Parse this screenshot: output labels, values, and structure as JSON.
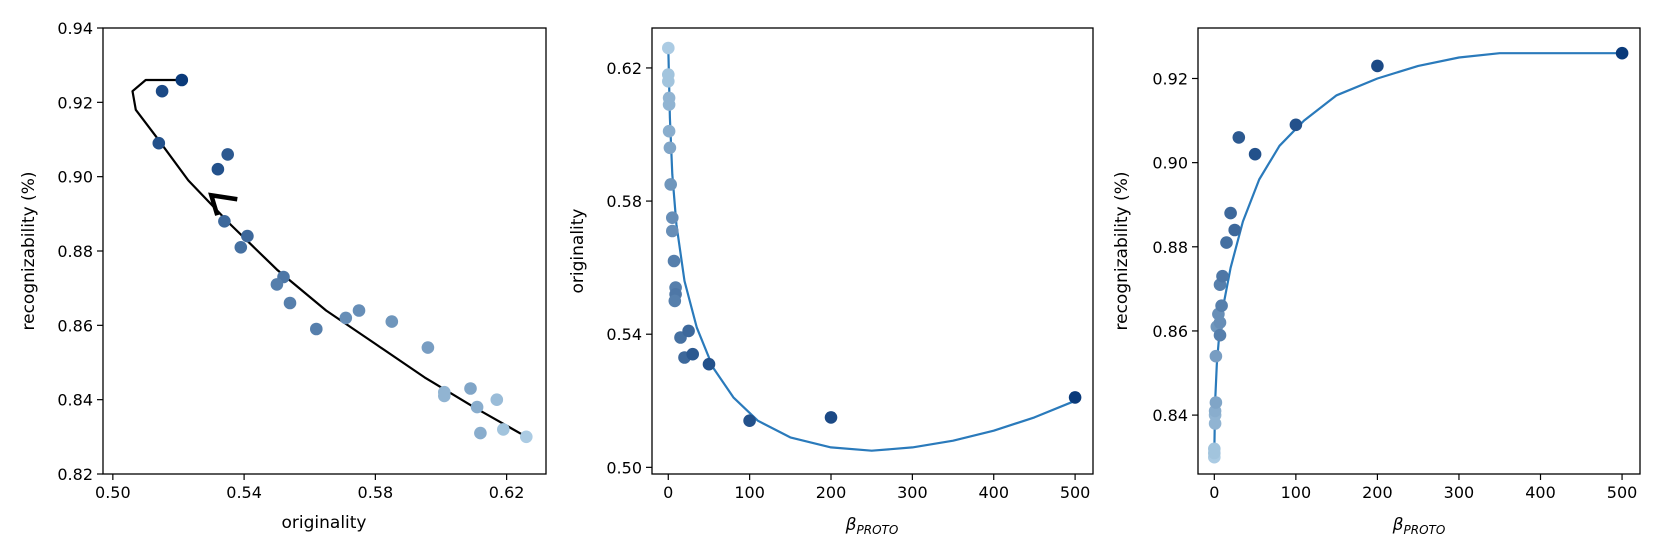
{
  "chart_data": [
    {
      "type": "scatter",
      "xlabel": "originality",
      "ylabel": "recognizability (%)",
      "xlim": [
        0.497,
        0.632
      ],
      "ylim": [
        0.82,
        0.94
      ],
      "xticks": [
        "0.50",
        "0.54",
        "0.58",
        "0.62"
      ],
      "yticks": [
        "0.82",
        "0.84",
        "0.86",
        "0.88",
        "0.90",
        "0.92",
        "0.94"
      ],
      "points": [
        {
          "x": 0.626,
          "y": 0.83,
          "shade": 0.05
        },
        {
          "x": 0.619,
          "y": 0.832,
          "shade": 0.1
        },
        {
          "x": 0.617,
          "y": 0.84,
          "shade": 0.15
        },
        {
          "x": 0.612,
          "y": 0.831,
          "shade": 0.25
        },
        {
          "x": 0.611,
          "y": 0.838,
          "shade": 0.25
        },
        {
          "x": 0.609,
          "y": 0.843,
          "shade": 0.3
        },
        {
          "x": 0.601,
          "y": 0.841,
          "shade": 0.2
        },
        {
          "x": 0.601,
          "y": 0.842,
          "shade": 0.2
        },
        {
          "x": 0.596,
          "y": 0.854,
          "shade": 0.35
        },
        {
          "x": 0.585,
          "y": 0.861,
          "shade": 0.4
        },
        {
          "x": 0.575,
          "y": 0.864,
          "shade": 0.45
        },
        {
          "x": 0.571,
          "y": 0.862,
          "shade": 0.45
        },
        {
          "x": 0.562,
          "y": 0.859,
          "shade": 0.55
        },
        {
          "x": 0.554,
          "y": 0.866,
          "shade": 0.55
        },
        {
          "x": 0.552,
          "y": 0.873,
          "shade": 0.6
        },
        {
          "x": 0.55,
          "y": 0.871,
          "shade": 0.55
        },
        {
          "x": 0.541,
          "y": 0.884,
          "shade": 0.7
        },
        {
          "x": 0.539,
          "y": 0.881,
          "shade": 0.65
        },
        {
          "x": 0.534,
          "y": 0.888,
          "shade": 0.7
        },
        {
          "x": 0.535,
          "y": 0.906,
          "shade": 0.8
        },
        {
          "x": 0.532,
          "y": 0.902,
          "shade": 0.85
        },
        {
          "x": 0.514,
          "y": 0.909,
          "shade": 0.85
        },
        {
          "x": 0.515,
          "y": 0.923,
          "shade": 0.9
        },
        {
          "x": 0.521,
          "y": 0.926,
          "shade": 1.0
        }
      ],
      "trend": [
        [
          0.626,
          0.83
        ],
        [
          0.61,
          0.838
        ],
        [
          0.595,
          0.846
        ],
        [
          0.58,
          0.855
        ],
        [
          0.565,
          0.864
        ],
        [
          0.55,
          0.875
        ],
        [
          0.536,
          0.887
        ],
        [
          0.523,
          0.899
        ],
        [
          0.513,
          0.911
        ],
        [
          0.507,
          0.918
        ],
        [
          0.506,
          0.923
        ],
        [
          0.51,
          0.926
        ],
        [
          0.52,
          0.926
        ]
      ],
      "arrow_at": [
        0.53,
        0.895
      ]
    },
    {
      "type": "scatter",
      "xlabel": "β",
      "xlabel_sub": "PROTO",
      "ylabel": "originality",
      "xlim": [
        -20,
        522
      ],
      "ylim": [
        0.498,
        0.632
      ],
      "xticks": [
        "0",
        "100",
        "200",
        "300",
        "400",
        "500"
      ],
      "yticks": [
        "0.50",
        "0.54",
        "0.58",
        "0.62"
      ],
      "points": [
        {
          "x": 0,
          "y": 0.626,
          "shade": 0.05
        },
        {
          "x": 0,
          "y": 0.618,
          "shade": 0.1
        },
        {
          "x": 0,
          "y": 0.616,
          "shade": 0.1
        },
        {
          "x": 1,
          "y": 0.611,
          "shade": 0.2
        },
        {
          "x": 1,
          "y": 0.609,
          "shade": 0.2
        },
        {
          "x": 1,
          "y": 0.601,
          "shade": 0.25
        },
        {
          "x": 2,
          "y": 0.596,
          "shade": 0.3
        },
        {
          "x": 3,
          "y": 0.585,
          "shade": 0.4
        },
        {
          "x": 5,
          "y": 0.575,
          "shade": 0.45
        },
        {
          "x": 5,
          "y": 0.571,
          "shade": 0.45
        },
        {
          "x": 7,
          "y": 0.562,
          "shade": 0.55
        },
        {
          "x": 9,
          "y": 0.554,
          "shade": 0.55
        },
        {
          "x": 9,
          "y": 0.552,
          "shade": 0.6
        },
        {
          "x": 8,
          "y": 0.55,
          "shade": 0.55
        },
        {
          "x": 15,
          "y": 0.539,
          "shade": 0.65
        },
        {
          "x": 25,
          "y": 0.541,
          "shade": 0.7
        },
        {
          "x": 20,
          "y": 0.533,
          "shade": 0.7
        },
        {
          "x": 30,
          "y": 0.534,
          "shade": 0.8
        },
        {
          "x": 50,
          "y": 0.531,
          "shade": 0.85
        },
        {
          "x": 100,
          "y": 0.514,
          "shade": 0.85
        },
        {
          "x": 200,
          "y": 0.515,
          "shade": 0.9
        },
        {
          "x": 500,
          "y": 0.521,
          "shade": 1.0
        }
      ],
      "trend": [
        [
          0,
          0.626
        ],
        [
          2,
          0.605
        ],
        [
          5,
          0.588
        ],
        [
          10,
          0.573
        ],
        [
          20,
          0.556
        ],
        [
          35,
          0.542
        ],
        [
          55,
          0.53
        ],
        [
          80,
          0.521
        ],
        [
          110,
          0.514
        ],
        [
          150,
          0.509
        ],
        [
          200,
          0.506
        ],
        [
          250,
          0.505
        ],
        [
          300,
          0.506
        ],
        [
          350,
          0.508
        ],
        [
          400,
          0.511
        ],
        [
          450,
          0.515
        ],
        [
          500,
          0.52
        ]
      ]
    },
    {
      "type": "scatter",
      "xlabel": "β",
      "xlabel_sub": "PROTO",
      "ylabel": "recognizability (%)",
      "xlim": [
        -20,
        522
      ],
      "ylim": [
        0.826,
        0.932
      ],
      "xticks": [
        "0",
        "100",
        "200",
        "300",
        "400",
        "500"
      ],
      "yticks": [
        "0.84",
        "0.86",
        "0.88",
        "0.90",
        "0.92"
      ],
      "points": [
        {
          "x": 0,
          "y": 0.83,
          "shade": 0.05
        },
        {
          "x": 0,
          "y": 0.831,
          "shade": 0.1
        },
        {
          "x": 0,
          "y": 0.832,
          "shade": 0.1
        },
        {
          "x": 1,
          "y": 0.838,
          "shade": 0.2
        },
        {
          "x": 1,
          "y": 0.84,
          "shade": 0.2
        },
        {
          "x": 1,
          "y": 0.841,
          "shade": 0.25
        },
        {
          "x": 2,
          "y": 0.843,
          "shade": 0.3
        },
        {
          "x": 2,
          "y": 0.854,
          "shade": 0.35
        },
        {
          "x": 3,
          "y": 0.861,
          "shade": 0.4
        },
        {
          "x": 5,
          "y": 0.864,
          "shade": 0.45
        },
        {
          "x": 7,
          "y": 0.862,
          "shade": 0.45
        },
        {
          "x": 7,
          "y": 0.859,
          "shade": 0.55
        },
        {
          "x": 9,
          "y": 0.866,
          "shade": 0.55
        },
        {
          "x": 7,
          "y": 0.871,
          "shade": 0.55
        },
        {
          "x": 10,
          "y": 0.873,
          "shade": 0.6
        },
        {
          "x": 15,
          "y": 0.881,
          "shade": 0.65
        },
        {
          "x": 25,
          "y": 0.884,
          "shade": 0.7
        },
        {
          "x": 20,
          "y": 0.888,
          "shade": 0.7
        },
        {
          "x": 30,
          "y": 0.906,
          "shade": 0.8
        },
        {
          "x": 50,
          "y": 0.902,
          "shade": 0.85
        },
        {
          "x": 100,
          "y": 0.909,
          "shade": 0.85
        },
        {
          "x": 200,
          "y": 0.923,
          "shade": 0.9
        },
        {
          "x": 500,
          "y": 0.926,
          "shade": 1.0
        }
      ],
      "trend": [
        [
          0,
          0.831
        ],
        [
          1,
          0.843
        ],
        [
          3,
          0.852
        ],
        [
          6,
          0.859
        ],
        [
          10,
          0.865
        ],
        [
          20,
          0.875
        ],
        [
          35,
          0.886
        ],
        [
          55,
          0.896
        ],
        [
          80,
          0.904
        ],
        [
          110,
          0.91
        ],
        [
          150,
          0.916
        ],
        [
          200,
          0.92
        ],
        [
          250,
          0.923
        ],
        [
          300,
          0.925
        ],
        [
          350,
          0.926
        ],
        [
          400,
          0.926
        ],
        [
          450,
          0.926
        ],
        [
          500,
          0.926
        ]
      ]
    }
  ],
  "colors": {
    "trend_panel1": "#000000",
    "trend_panels23": "#2a7abb",
    "point_light": "#b3d3e8",
    "point_dark": "#0a3a7a"
  }
}
